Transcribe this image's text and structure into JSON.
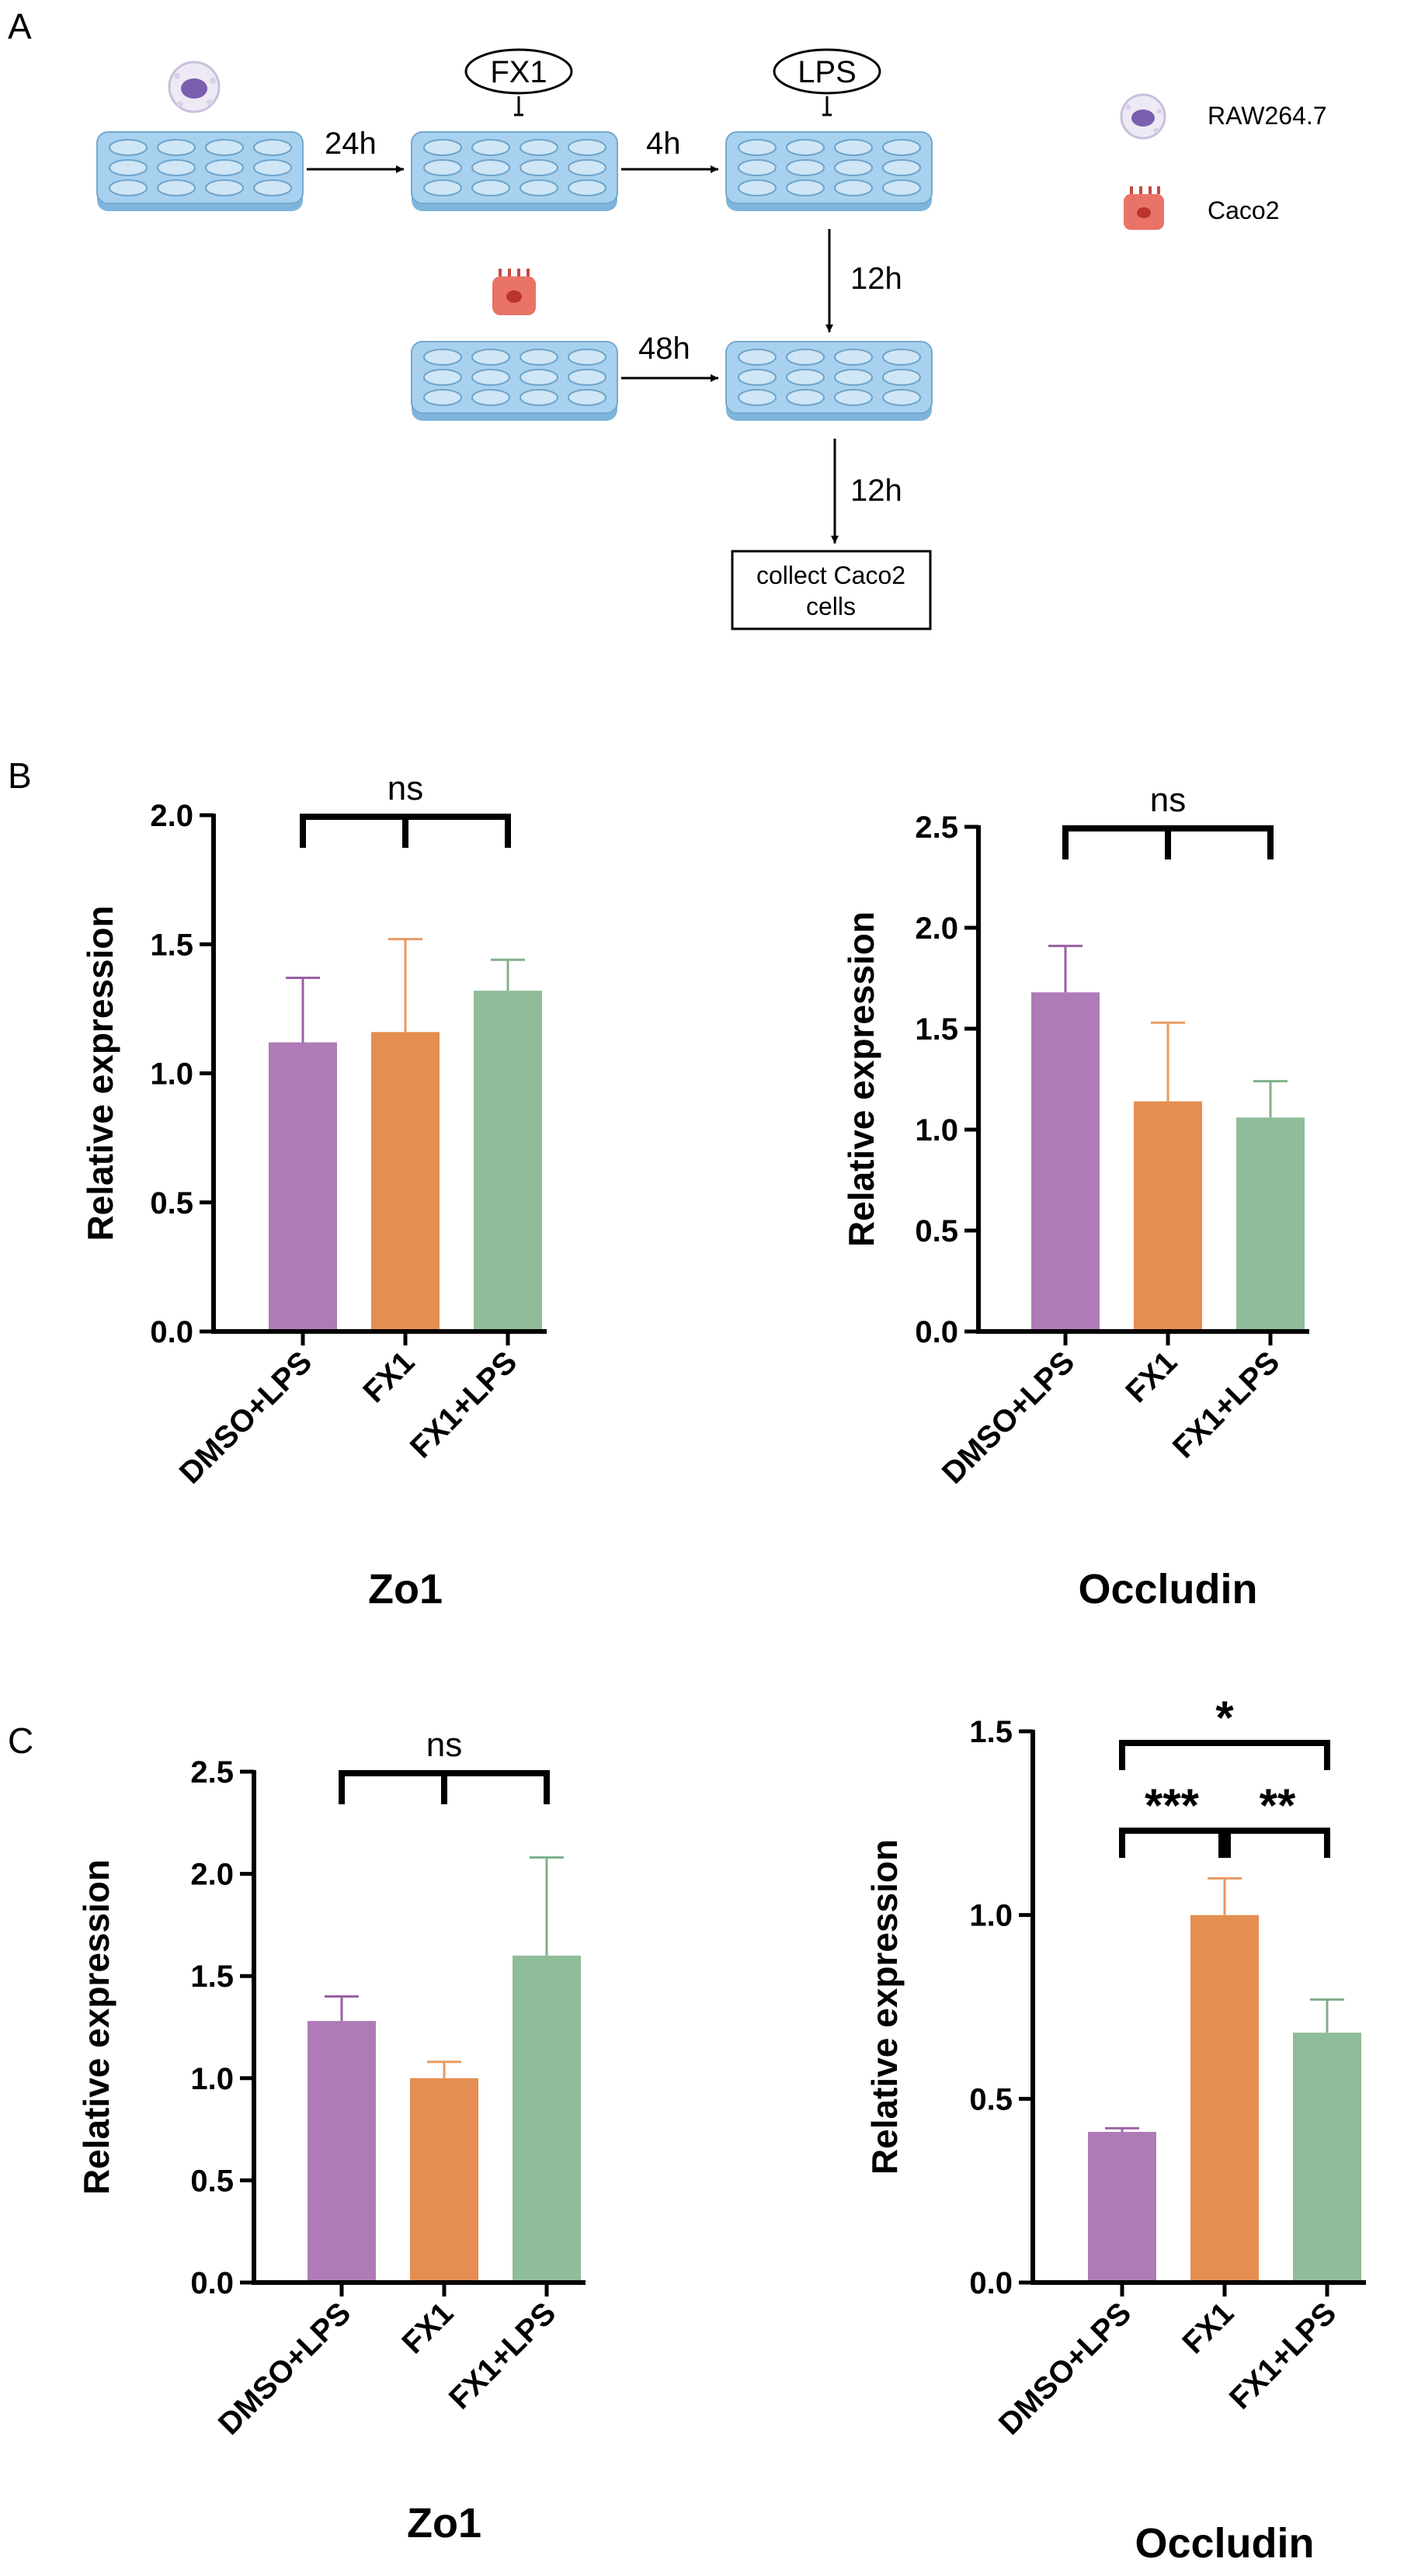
{
  "panels": {
    "a": "A",
    "b": "B",
    "c": "C"
  },
  "workflow": {
    "step_24h": "24h",
    "step_4h": "4h",
    "step_12h_a": "12h",
    "step_48h": "48h",
    "step_12h_b": "12h",
    "fx1_label": "FX1",
    "lps_label": "LPS",
    "collect_line1": "collect Caco2",
    "collect_line2": "cells"
  },
  "legend": {
    "raw": "RAW264.7",
    "caco2": "Caco2"
  },
  "colors": {
    "purple": "#ae7bb6",
    "orange": "#e48e52",
    "green": "#8fbc99",
    "plate": "#a7d1ee",
    "plate_edge": "#74a9cf",
    "macrophage": "#7a5fb0",
    "caco2": "#e66a5e"
  },
  "chart_data": [
    {
      "type": "bar",
      "panel": "B",
      "title": "Zo1",
      "xlabel": "Zo1",
      "ylabel": "Relative expression",
      "categories": [
        "DMSO+LPS",
        "FX1",
        "FX1+LPS"
      ],
      "values": [
        1.12,
        1.16,
        1.32
      ],
      "errors": [
        0.25,
        0.36,
        0.12
      ],
      "ylim": [
        0,
        2.0
      ],
      "yticks": [
        "0.0",
        "0.5",
        "1.0",
        "1.5",
        "2.0"
      ],
      "significance": [
        {
          "label": "ns",
          "type": "group"
        }
      ]
    },
    {
      "type": "bar",
      "panel": "B",
      "title": "Occludin",
      "xlabel": "Occludin",
      "ylabel": "Relative expression",
      "categories": [
        "DMSO+LPS",
        "FX1",
        "FX1+LPS"
      ],
      "values": [
        1.68,
        1.14,
        1.06
      ],
      "errors": [
        0.23,
        0.39,
        0.18
      ],
      "ylim": [
        0,
        2.5
      ],
      "yticks": [
        "0.0",
        "0.5",
        "1.0",
        "1.5",
        "2.0",
        "2.5"
      ],
      "significance": [
        {
          "label": "ns",
          "type": "group"
        }
      ]
    },
    {
      "type": "bar",
      "panel": "C",
      "title": "Zo1",
      "xlabel": "Zo1",
      "ylabel": "Relative expression",
      "categories": [
        "DMSO+LPS",
        "FX1",
        "FX1+LPS"
      ],
      "values": [
        1.28,
        1.0,
        1.6
      ],
      "errors": [
        0.12,
        0.08,
        0.48
      ],
      "ylim": [
        0,
        2.5
      ],
      "yticks": [
        "0.0",
        "0.5",
        "1.0",
        "1.5",
        "2.0",
        "2.5"
      ],
      "significance": [
        {
          "label": "ns",
          "type": "group"
        }
      ]
    },
    {
      "type": "bar",
      "panel": "C",
      "title": "Occludin",
      "xlabel": "Occludin",
      "ylabel": "Relative expression",
      "categories": [
        "DMSO+LPS",
        "FX1",
        "FX1+LPS"
      ],
      "values": [
        0.41,
        1.0,
        0.68
      ],
      "errors": [
        0.01,
        0.1,
        0.09
      ],
      "ylim": [
        0,
        1.5
      ],
      "yticks": [
        "0.0",
        "0.5",
        "1.0",
        "1.5"
      ],
      "significance": [
        {
          "label": "*",
          "pair": [
            "DMSO+LPS",
            "FX1+LPS"
          ]
        },
        {
          "label": "***",
          "pair": [
            "DMSO+LPS",
            "FX1"
          ]
        },
        {
          "label": "**",
          "pair": [
            "FX1",
            "FX1+LPS"
          ]
        }
      ]
    }
  ]
}
